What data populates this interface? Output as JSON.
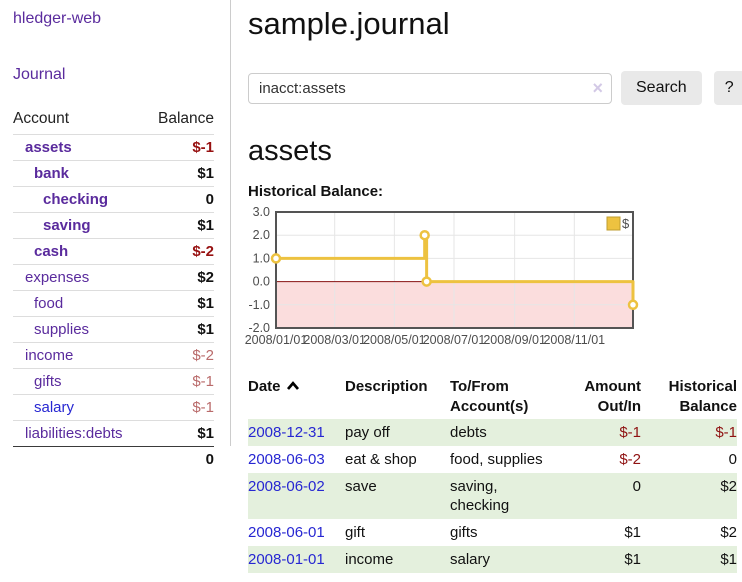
{
  "app": {
    "title": "hledger-web"
  },
  "sidebar": {
    "nav_journal": "Journal",
    "table": {
      "account_header": "Account",
      "balance_header": "Balance",
      "accounts": [
        {
          "name": "assets",
          "depth": 0,
          "bold": true,
          "balance": "$-1"
        },
        {
          "name": "bank",
          "depth": 1,
          "bold": true,
          "balance": "$1"
        },
        {
          "name": "checking",
          "depth": 2,
          "bold": true,
          "balance": "0"
        },
        {
          "name": "saving",
          "depth": 2,
          "bold": true,
          "balance": "$1"
        },
        {
          "name": "cash",
          "depth": 1,
          "bold": true,
          "balance": "$-2"
        },
        {
          "name": "expenses",
          "depth": 0,
          "bold": false,
          "balance": "$2"
        },
        {
          "name": "food",
          "depth": 1,
          "bold": false,
          "balance": "$1"
        },
        {
          "name": "supplies",
          "depth": 1,
          "bold": false,
          "balance": "$1"
        },
        {
          "name": "income",
          "depth": 0,
          "bold": false,
          "balance": "$-2"
        },
        {
          "name": "gifts",
          "depth": 1,
          "bold": false,
          "balance": "$-1"
        },
        {
          "name": "salary",
          "depth": 1,
          "bold": false,
          "balance": "$-1",
          "unvisited": true
        },
        {
          "name": "liabilities:debts",
          "depth": 0,
          "bold": false,
          "balance": "$1"
        }
      ],
      "total": "0"
    }
  },
  "header": {
    "title": "sample.journal"
  },
  "search": {
    "value": "inacct:assets",
    "placeholder": "",
    "button_label": "Search",
    "help_label": "?"
  },
  "icons": {
    "clear_search": "×",
    "sort": "chevron-up"
  },
  "account_page": {
    "heading": "assets",
    "chart_label": "Historical Balance:"
  },
  "chart_data": {
    "type": "line",
    "step": true,
    "title": "Historical Balance:",
    "series": [
      {
        "name": "$",
        "color": "#edc240",
        "points": [
          [
            "2008/01/01",
            1.0
          ],
          [
            "2008/06/01",
            2.0
          ],
          [
            "2008/06/03",
            0.0
          ],
          [
            "2008/12/31",
            -1.0
          ]
        ]
      }
    ],
    "x_range": [
      "2008/01/01",
      "2008/12/31"
    ],
    "x_ticks": [
      "2008/01/01",
      "2008/03/01",
      "2008/05/01",
      "2008/07/01",
      "2008/09/01",
      "2008/11/01"
    ],
    "y_ticks": [
      3.0,
      2.0,
      1.0,
      0.0,
      -1.0,
      -2.0
    ],
    "ylim": [
      -2.0,
      3.0
    ],
    "grid": true,
    "legend_position": "top-right",
    "legend_label": "$",
    "negative_region_color": "#fbdddd",
    "zero_line_color": "#871111",
    "grid_color": "#e6e6e6",
    "border_color": "#545454",
    "tick_color": "#4d4d4d"
  },
  "register": {
    "sort_column": "Date",
    "sort_direction": "ascending",
    "headers": [
      {
        "lines": [
          "Date"
        ],
        "align": "left",
        "sortable": true
      },
      {
        "lines": [
          "Description"
        ],
        "align": "left"
      },
      {
        "lines": [
          "To/From",
          "Account(s)"
        ],
        "align": "left"
      },
      {
        "lines": [
          "Amount",
          "Out/In"
        ],
        "align": "right"
      },
      {
        "lines": [
          "Historical",
          "Balance"
        ],
        "align": "right"
      }
    ],
    "rows": [
      {
        "date": "2008-12-31",
        "description": "pay off",
        "accounts": "debts",
        "amount": "$-1",
        "balance": "$-1"
      },
      {
        "date": "2008-06-03",
        "description": "eat & shop",
        "accounts": "food, supplies",
        "amount": "$-2",
        "balance": "0"
      },
      {
        "date": "2008-06-02",
        "description": "save",
        "accounts": "saving, checking",
        "amount": "0",
        "balance": "$2"
      },
      {
        "date": "2008-06-01",
        "description": "gift",
        "accounts": "gifts",
        "amount": "$1",
        "balance": "$2"
      },
      {
        "date": "2008-01-01",
        "description": "income",
        "accounts": "salary",
        "amount": "$1",
        "balance": "$1"
      }
    ]
  },
  "colors": {
    "accent_purple": "#5a2b9d",
    "link_blue": "#2727d2",
    "negative_red": "#971111",
    "negative_muted_red": "#b96a6a",
    "row_stripe_green": "#e4f0dd",
    "series_gold": "#edc240",
    "negative_region_pink": "#fbdddd",
    "zero_line_red": "#871111",
    "button_gray": "#e9e9e9"
  }
}
